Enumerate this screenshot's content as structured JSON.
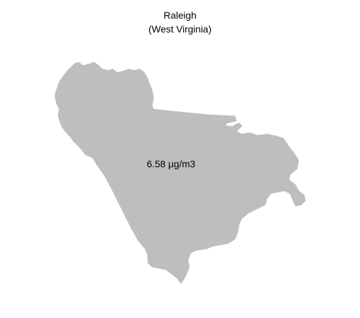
{
  "title": "Raleigh",
  "subtitle": "(West Virginia)",
  "region": {
    "name": "Raleigh",
    "state": "West Virginia",
    "fill_color": "#bebebe"
  },
  "value_label": "6.58 µg/m3"
}
